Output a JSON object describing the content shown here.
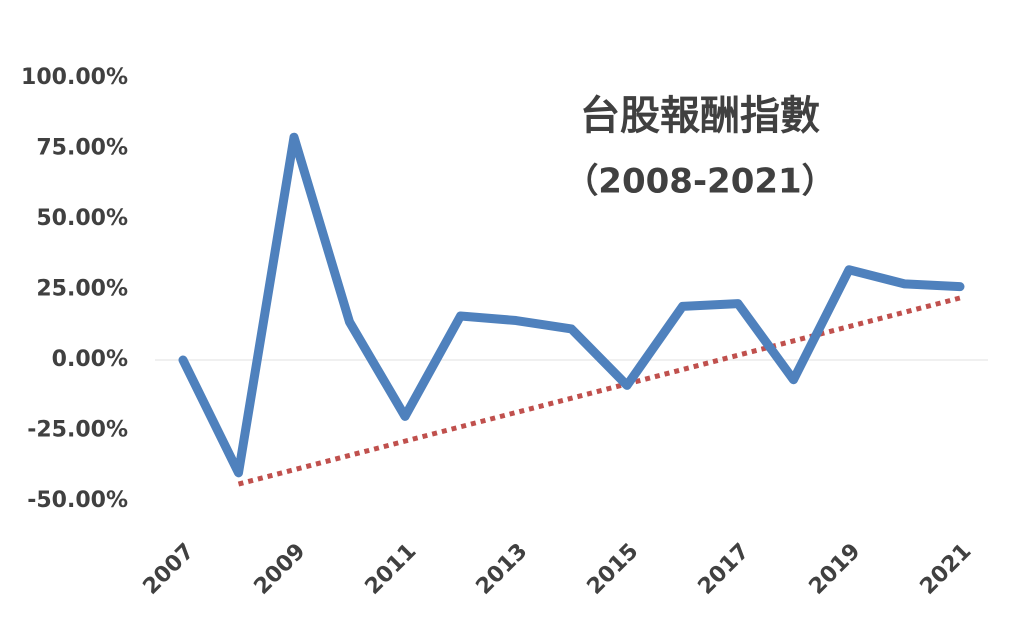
{
  "chart_data": {
    "type": "line",
    "title": "台股報酬指數",
    "subtitle": "（2008-2021）",
    "x": [
      2007,
      2008,
      2009,
      2010,
      2011,
      2012,
      2013,
      2014,
      2015,
      2016,
      2017,
      2018,
      2019,
      2020,
      2021
    ],
    "series": [
      {
        "color": "#4f81bd",
        "values": [
          0,
          -40,
          79,
          13.5,
          -20,
          15.6,
          14,
          11,
          -9,
          19,
          20,
          -7,
          32,
          27,
          26
        ]
      }
    ],
    "trendline": {
      "color": "#c0504d",
      "x": [
        2008,
        2021
      ],
      "values": [
        -44,
        22
      ]
    },
    "xlim": [
      2007,
      2021
    ],
    "xticks": [
      2007,
      2009,
      2011,
      2013,
      2015,
      2017,
      2019,
      2021
    ],
    "ylim": [
      -50,
      100
    ],
    "yticks": [
      {
        "value": -50,
        "label": "-50.00%"
      },
      {
        "value": -25,
        "label": "-25.00%"
      },
      {
        "value": 0,
        "label": "0.00%"
      },
      {
        "value": 25,
        "label": "25.00%"
      },
      {
        "value": 50,
        "label": "50.00%"
      },
      {
        "value": 75,
        "label": "75.00%"
      },
      {
        "value": 100,
        "label": "100.00%"
      }
    ]
  }
}
